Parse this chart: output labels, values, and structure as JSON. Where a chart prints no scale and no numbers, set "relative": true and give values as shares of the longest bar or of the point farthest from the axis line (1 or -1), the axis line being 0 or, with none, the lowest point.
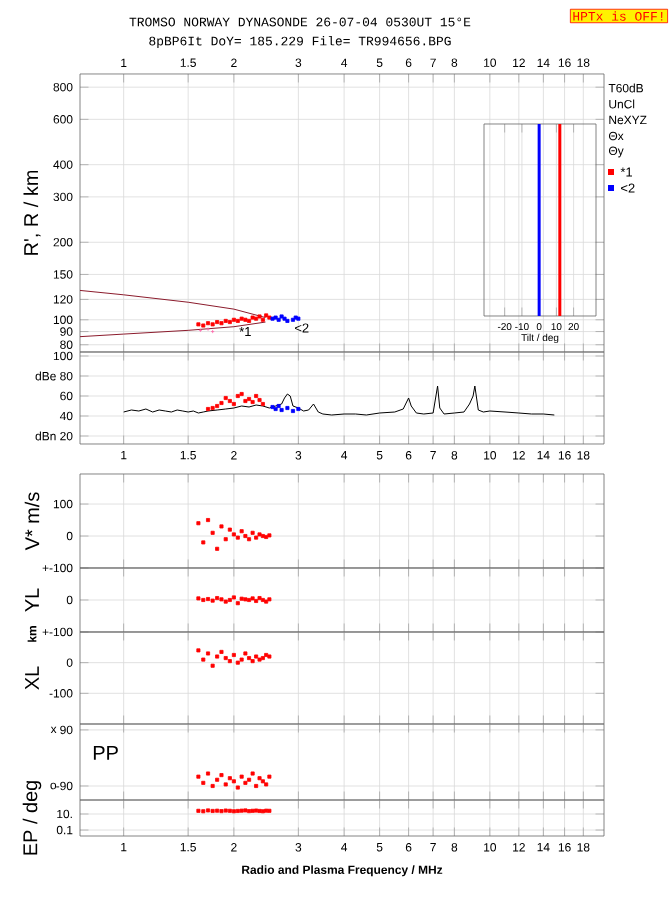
{
  "chart_data": [
    {
      "type": "scatter",
      "title": "TROMSO NORWAY   DYNASONDE 26-07-04 0530UT 15°E",
      "subtitle": "8pBP6It DoY= 185.229 File= TR994656.BPG",
      "ylabel": "R', R / km",
      "xlim": [
        0.76,
        20.5
      ],
      "ylim": [
        75,
        900
      ],
      "log": "xy",
      "grid": true,
      "marker": "square",
      "legend": "right",
      "xticks": [
        1,
        1.5,
        2,
        3,
        4,
        5,
        6,
        7,
        8,
        10,
        12,
        14,
        16,
        18
      ],
      "yticks": [
        80,
        90,
        100,
        120,
        150,
        200,
        300,
        400,
        600,
        800
      ],
      "annotations": [
        "HPTx is OFF!",
        "T60dB",
        "UnCl",
        "NeXYZ",
        "Θx",
        "Θy",
        {
          "text": "*1",
          "x": 2.05,
          "y": 90
        },
        {
          "text": "<2",
          "x": 2.9,
          "y": 93
        }
      ],
      "series": [
        {
          "type": "line",
          "marker": "none",
          "color": "#8b1a2b",
          "x": [
            0.76,
            1.0,
            1.5,
            2.0,
            2.44
          ],
          "values": [
            130,
            125,
            117,
            110,
            102
          ]
        },
        {
          "type": "line",
          "marker": "none",
          "color": "#8b1a2b",
          "x": [
            0.76,
            1.0,
            1.5,
            2.0,
            2.44
          ],
          "values": [
            86,
            88,
            91,
            94,
            98
          ]
        },
        {
          "color": "#ff66aa",
          "marker": "cross",
          "x": [
            1.62,
            1.7,
            1.75
          ],
          "values": [
            91,
            92,
            90
          ]
        },
        {
          "name": "*1",
          "color": "#ff0000",
          "x": [
            1.6,
            1.65,
            1.7,
            1.75,
            1.8,
            1.85,
            1.9,
            1.95,
            2.0,
            2.05,
            2.1,
            2.15,
            2.2,
            2.25,
            2.3,
            2.35,
            2.4,
            2.45,
            2.5
          ],
          "values": [
            96,
            95,
            97,
            96,
            98,
            97,
            99,
            98,
            100,
            99,
            101,
            100,
            99,
            102,
            101,
            103,
            100,
            104,
            102
          ]
        },
        {
          "name": "<2",
          "color": "#0000ff",
          "x": [
            2.55,
            2.6,
            2.65,
            2.7,
            2.75,
            2.8,
            2.9,
            2.95,
            3.0
          ],
          "values": [
            101,
            102,
            100,
            103,
            101,
            99,
            100,
            102,
            101
          ]
        }
      ]
    },
    {
      "type": "bar",
      "relative": true,
      "xlabel": "Tilt / deg",
      "xlim": [
        -32,
        33
      ],
      "xticks": [
        -20,
        -10,
        0,
        10,
        20
      ],
      "grid": "x",
      "tick_labels": "x",
      "series": [
        {
          "color": "#ff0000",
          "x": [
            12
          ],
          "values": [
            1
          ]
        },
        {
          "color": "#0000ff",
          "x": [
            0
          ],
          "values": [
            1
          ]
        }
      ]
    },
    {
      "type": "line",
      "xlim": [
        0.76,
        20.5
      ],
      "ylim": [
        12,
        104
      ],
      "log": "x",
      "grid": true,
      "marker": "square",
      "xticks": [
        1,
        1.5,
        2,
        3,
        4,
        5,
        6,
        7,
        8,
        10,
        12,
        14,
        16,
        18
      ],
      "yticks": [
        100,
        {
          "value": 80,
          "label": "dBe 80"
        },
        60,
        40,
        {
          "value": 20,
          "label": "dBn 20"
        }
      ],
      "series": [
        {
          "color": "#000000",
          "marker": "none",
          "x": [
            1.0,
            1.05,
            1.1,
            1.15,
            1.2,
            1.25,
            1.3,
            1.35,
            1.4,
            1.45,
            1.5,
            1.55,
            1.6,
            1.65,
            1.7,
            1.8,
            1.9,
            2.0,
            2.1,
            2.2,
            2.3,
            2.4,
            2.5,
            2.6,
            2.7,
            2.75,
            2.8,
            2.85,
            2.9,
            3.0,
            3.1,
            3.2,
            3.3,
            3.4,
            3.5,
            3.7,
            4.0,
            4.3,
            4.6,
            5.0,
            5.5,
            5.8,
            6.0,
            6.1,
            6.3,
            6.6,
            7.0,
            7.2,
            7.3,
            7.5,
            8.0,
            8.5,
            8.8,
            9.0,
            9.1,
            9.3,
            9.6,
            10,
            11,
            12,
            13,
            14,
            15
          ],
          "values": [
            44,
            46,
            45,
            47,
            44,
            46,
            45,
            44,
            46,
            45,
            44,
            45,
            43,
            44,
            45,
            46,
            47,
            48,
            50,
            49,
            51,
            50,
            48,
            50,
            52,
            58,
            62,
            60,
            50,
            48,
            45,
            46,
            52,
            44,
            42,
            41,
            42,
            42,
            41,
            43,
            44,
            47,
            58,
            50,
            43,
            42,
            43,
            70,
            48,
            42,
            43,
            44,
            52,
            60,
            70,
            46,
            44,
            45,
            44,
            43,
            42,
            42,
            41
          ]
        },
        {
          "type": "scatter",
          "color": "#ff0000",
          "x": [
            1.7,
            1.75,
            1.8,
            1.85,
            1.9,
            1.95,
            2.0,
            2.05,
            2.1,
            2.15,
            2.2,
            2.25,
            2.3,
            2.35,
            2.4
          ],
          "values": [
            47,
            48,
            50,
            53,
            58,
            55,
            52,
            60,
            62,
            55,
            57,
            54,
            60,
            56,
            52
          ]
        },
        {
          "type": "scatter",
          "color": "#0000ff",
          "x": [
            2.55,
            2.6,
            2.65,
            2.7,
            2.8,
            2.9,
            3.0
          ],
          "values": [
            49,
            47,
            50,
            46,
            48,
            45,
            47
          ]
        }
      ]
    },
    {
      "type": "scatter",
      "ylabel": "V* m/s",
      "xlim": [
        0.76,
        20.5
      ],
      "ylim": [
        -100,
        194
      ],
      "log": "x",
      "grid": true,
      "marker": "square",
      "tick_labels": "y",
      "xticks": [
        1,
        1.5,
        2,
        3,
        4,
        5,
        6,
        7,
        8,
        10,
        12,
        14,
        16,
        18
      ],
      "yticks": [
        {
          "value": -100,
          "label": "+-100"
        },
        0,
        100
      ],
      "x": [
        1.6,
        1.65,
        1.7,
        1.75,
        1.8,
        1.85,
        1.9,
        1.95,
        2.0,
        2.05,
        2.1,
        2.15,
        2.2,
        2.25,
        2.3,
        2.35,
        2.4,
        2.45,
        2.5
      ],
      "series": [
        {
          "color": "#ff0000",
          "values": [
            40,
            -20,
            50,
            10,
            -40,
            30,
            -10,
            20,
            5,
            -5,
            15,
            0,
            -10,
            10,
            -5,
            5,
            0,
            -3,
            2
          ]
        }
      ]
    },
    {
      "type": "scatter",
      "ylabel": "YL",
      "xlim": [
        0.76,
        20.5
      ],
      "ylim": [
        -100,
        100
      ],
      "log": "x",
      "grid": true,
      "marker": "square",
      "tick_labels": "y",
      "xticks": [
        1,
        1.5,
        2,
        3,
        4,
        5,
        6,
        7,
        8,
        10,
        12,
        14,
        16,
        18
      ],
      "yticks": [
        {
          "value": -100,
          "label": "+-100"
        },
        0
      ],
      "x": [
        1.6,
        1.65,
        1.7,
        1.75,
        1.8,
        1.85,
        1.9,
        1.95,
        2.0,
        2.05,
        2.1,
        2.15,
        2.2,
        2.25,
        2.3,
        2.35,
        2.4,
        2.45,
        2.5
      ],
      "series": [
        {
          "color": "#ff0000",
          "values": [
            5,
            0,
            3,
            -2,
            6,
            2,
            -5,
            0,
            8,
            -10,
            4,
            2,
            0,
            5,
            -3,
            6,
            0,
            -5,
            2
          ]
        }
      ]
    },
    {
      "type": "scatter",
      "ylabel": "XL",
      "annotations": [
        "km"
      ],
      "xlim": [
        0.76,
        20.5
      ],
      "ylim": [
        -200,
        100
      ],
      "log": "x",
      "grid": true,
      "marker": "square",
      "tick_labels": "y",
      "xticks": [
        1,
        1.5,
        2,
        3,
        4,
        5,
        6,
        7,
        8,
        10,
        12,
        14,
        16,
        18
      ],
      "yticks": [
        0,
        -100
      ],
      "x": [
        1.6,
        1.65,
        1.7,
        1.75,
        1.8,
        1.85,
        1.9,
        1.95,
        2.0,
        2.05,
        2.1,
        2.15,
        2.2,
        2.25,
        2.3,
        2.35,
        2.4,
        2.45,
        2.5
      ],
      "series": [
        {
          "color": "#ff0000",
          "values": [
            40,
            10,
            30,
            -10,
            20,
            35,
            15,
            5,
            25,
            0,
            10,
            30,
            15,
            5,
            20,
            10,
            15,
            25,
            20
          ]
        }
      ]
    },
    {
      "type": "scatter",
      "ylabel": "PP",
      "annotations": [
        "x",
        "o"
      ],
      "xlim": [
        0.76,
        20.5
      ],
      "ylim": [
        -135,
        109
      ],
      "log": "x",
      "grid": true,
      "marker": "square",
      "tick_labels": "y",
      "xticks": [
        1,
        1.5,
        2,
        3,
        4,
        5,
        6,
        7,
        8,
        10,
        12,
        14,
        16,
        18
      ],
      "yticks": [
        90,
        -90
      ],
      "x": [
        1.6,
        1.65,
        1.7,
        1.75,
        1.8,
        1.85,
        1.9,
        1.95,
        2.0,
        2.05,
        2.1,
        2.15,
        2.2,
        2.25,
        2.3,
        2.35,
        2.4,
        2.45,
        2.5
      ],
      "series": [
        {
          "color": "#ff0000",
          "values": [
            -60,
            -80,
            -50,
            -90,
            -70,
            -55,
            -85,
            -65,
            -75,
            -95,
            -60,
            -80,
            -70,
            -50,
            -90,
            -65,
            -75,
            -85,
            -60
          ]
        }
      ]
    },
    {
      "type": "scatter",
      "xlabel": "Radio and Plasma Frequency / MHz",
      "ylabel": "EP / deg",
      "xlim": [
        0.76,
        20.5
      ],
      "ylim": [
        0.018,
        560
      ],
      "log": "xy",
      "grid": true,
      "marker": "square",
      "xticks": [
        1,
        1.5,
        2,
        3,
        4,
        5,
        6,
        7,
        8,
        10,
        12,
        14,
        16,
        18
      ],
      "yticks": [
        {
          "value": 10,
          "label": "10."
        },
        0.1
      ],
      "x": [
        1.6,
        1.65,
        1.7,
        1.75,
        1.8,
        1.85,
        1.9,
        1.95,
        2.0,
        2.05,
        2.1,
        2.15,
        2.2,
        2.25,
        2.3,
        2.35,
        2.4,
        2.45,
        2.5
      ],
      "series": [
        {
          "color": "#ff0000",
          "values": [
            25,
            22,
            28,
            24,
            26,
            23,
            27,
            25,
            22,
            24,
            26,
            28,
            23,
            25,
            27,
            24,
            22,
            26,
            25
          ]
        }
      ]
    }
  ]
}
